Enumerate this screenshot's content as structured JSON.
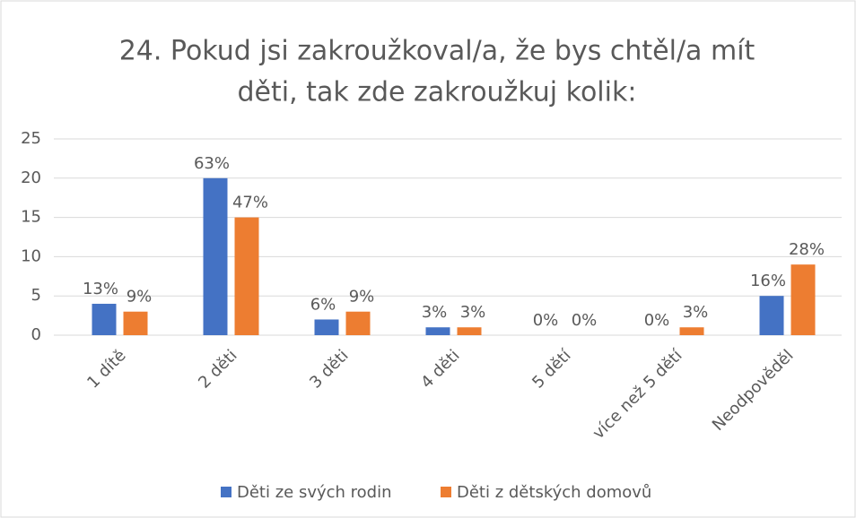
{
  "chart_data": {
    "type": "bar",
    "title": [
      "24. Pokud jsi zakroužkoval/a, že bys chtěl/a mít",
      "děti, tak zde zakroužkuj kolik:"
    ],
    "categories": [
      "1 dítě",
      "2 děti",
      "3 děti",
      "4 děti",
      "5 dětí",
      "více než 5 dětí",
      "Neodpověděl"
    ],
    "series": [
      {
        "name": "Děti ze svých rodin",
        "color": "#4472c4",
        "values": [
          4,
          20,
          2,
          1,
          0,
          0,
          5
        ],
        "value_labels": [
          "13%",
          "63%",
          "6%",
          "3%",
          "0%",
          "0%",
          "16%"
        ]
      },
      {
        "name": "Děti z dětských domovů",
        "color": "#ed7d31",
        "values": [
          3,
          15,
          3,
          1,
          0,
          1,
          9
        ],
        "value_labels": [
          "9%",
          "47%",
          "9%",
          "3%",
          "0%",
          "3%",
          "28%"
        ]
      }
    ],
    "ylim": [
      0,
      25
    ],
    "yticks": [
      0,
      5,
      10,
      15,
      20,
      25
    ],
    "grid": true,
    "legend": "bottom"
  }
}
